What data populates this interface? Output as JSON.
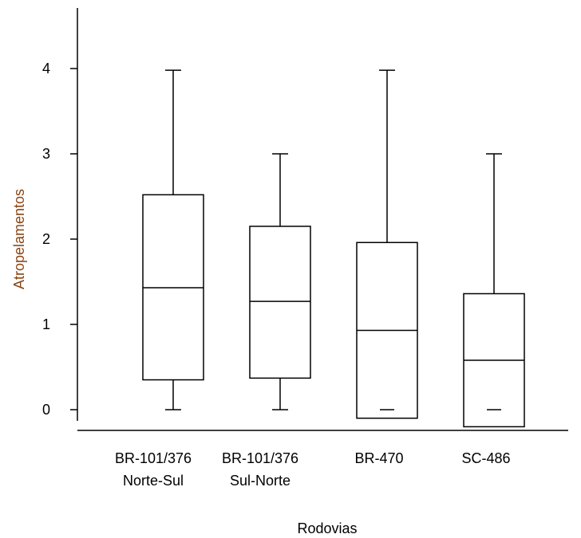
{
  "chart_data": {
    "type": "box",
    "xlabel": "Rodovias",
    "ylabel": "Atropelamentos",
    "ylim": [
      -0.2,
      4.7
    ],
    "yticks": [
      0,
      1,
      2,
      3,
      4
    ],
    "grid": false,
    "categories": [
      {
        "line1": "BR-101/376",
        "line2": "Norte-Sul"
      },
      {
        "line1": "BR-101/376",
        "line2": "Sul-Norte"
      },
      {
        "line1": "BR-470",
        "line2": ""
      },
      {
        "line1": "SC-486",
        "line2": ""
      }
    ],
    "boxes": [
      {
        "whisker_low": 0,
        "q1": 0.35,
        "median": 1.43,
        "q3": 2.52,
        "whisker_high": 3.98,
        "min_marker": null
      },
      {
        "whisker_low": 0,
        "q1": 0.37,
        "median": 1.27,
        "q3": 2.15,
        "whisker_high": 3.0,
        "min_marker": null
      },
      {
        "whisker_low": null,
        "q1": -0.1,
        "median": 0.93,
        "q3": 1.96,
        "whisker_high": 3.98,
        "min_marker": 0
      },
      {
        "whisker_low": null,
        "q1": -0.2,
        "median": 0.58,
        "q3": 1.36,
        "whisker_high": 3.0,
        "min_marker": 0
      }
    ],
    "colors": {
      "ylabel": "#8b4513",
      "xlabel": "#000000",
      "lines": "#000000"
    }
  }
}
